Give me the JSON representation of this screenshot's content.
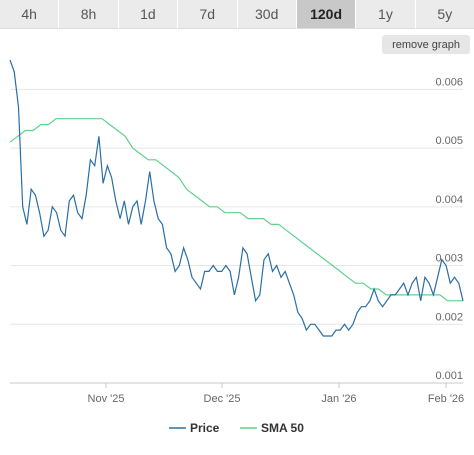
{
  "tabs": [
    {
      "label": "4h",
      "active": false
    },
    {
      "label": "8h",
      "active": false
    },
    {
      "label": "1d",
      "active": false
    },
    {
      "label": "7d",
      "active": false
    },
    {
      "label": "30d",
      "active": false
    },
    {
      "label": "120d",
      "active": true
    },
    {
      "label": "1y",
      "active": false
    },
    {
      "label": "5y",
      "active": false
    }
  ],
  "remove_graph_label": "remove graph",
  "colors": {
    "price": "#2a6ea6",
    "sma": "#5fd18a",
    "grid": "#e6e6e6"
  },
  "chart_data": {
    "type": "line",
    "x_ticks": [
      "Nov '25",
      "Dec '25",
      "Jan '26",
      "Feb '26"
    ],
    "y_ticks": [
      "0.001",
      "0.002",
      "0.003",
      "0.004",
      "0.005",
      "0.006"
    ],
    "ylim": [
      0.001,
      0.0065
    ],
    "grid": true,
    "legend": "bottom",
    "series": [
      {
        "name": "Price",
        "values": [
          0.0065,
          0.0063,
          0.0057,
          0.004,
          0.0037,
          0.0043,
          0.0042,
          0.0039,
          0.0035,
          0.0036,
          0.004,
          0.0039,
          0.0036,
          0.0035,
          0.0041,
          0.0042,
          0.0039,
          0.0038,
          0.0042,
          0.0048,
          0.0047,
          0.0052,
          0.0044,
          0.0047,
          0.0045,
          0.0041,
          0.0038,
          0.0041,
          0.0037,
          0.004,
          0.0041,
          0.0037,
          0.0041,
          0.0046,
          0.0041,
          0.0038,
          0.0037,
          0.0033,
          0.0032,
          0.0029,
          0.003,
          0.0033,
          0.0031,
          0.0028,
          0.0027,
          0.0026,
          0.0029,
          0.0029,
          0.003,
          0.0029,
          0.0029,
          0.003,
          0.0029,
          0.0025,
          0.0028,
          0.0033,
          0.0032,
          0.0028,
          0.0024,
          0.0025,
          0.0031,
          0.0032,
          0.0029,
          0.003,
          0.0028,
          0.0029,
          0.0027,
          0.0025,
          0.0022,
          0.0021,
          0.0019,
          0.002,
          0.002,
          0.0019,
          0.0018,
          0.0018,
          0.0018,
          0.0019,
          0.0019,
          0.002,
          0.0019,
          0.002,
          0.0022,
          0.0023,
          0.0023,
          0.0024,
          0.0026,
          0.0024,
          0.0023,
          0.0024,
          0.0025,
          0.0025,
          0.0026,
          0.0027,
          0.0025,
          0.0027,
          0.0028,
          0.0024,
          0.0028,
          0.0027,
          0.0025,
          0.0028,
          0.0031,
          0.003,
          0.0027,
          0.0028,
          0.0027,
          0.0024
        ]
      },
      {
        "name": "SMA 50",
        "values": [
          0.0051,
          0.0052,
          0.0053,
          0.0053,
          0.0054,
          0.0054,
          0.0055,
          0.0055,
          0.0055,
          0.0055,
          0.0055,
          0.0055,
          0.0055,
          0.0054,
          0.0053,
          0.0052,
          0.005,
          0.0049,
          0.0048,
          0.0048,
          0.0047,
          0.0046,
          0.0045,
          0.0043,
          0.0042,
          0.0041,
          0.004,
          0.004,
          0.0039,
          0.0039,
          0.0039,
          0.0038,
          0.0038,
          0.0038,
          0.0037,
          0.0037,
          0.0036,
          0.0035,
          0.0034,
          0.0033,
          0.0032,
          0.0031,
          0.003,
          0.0029,
          0.0028,
          0.0027,
          0.0027,
          0.0026,
          0.0026,
          0.0025,
          0.0025,
          0.0025,
          0.0025,
          0.0025,
          0.0025,
          0.0025,
          0.0025,
          0.0024,
          0.0024,
          0.0024
        ]
      }
    ]
  },
  "legend": {
    "price_label": "Price",
    "sma_label": "SMA 50"
  }
}
